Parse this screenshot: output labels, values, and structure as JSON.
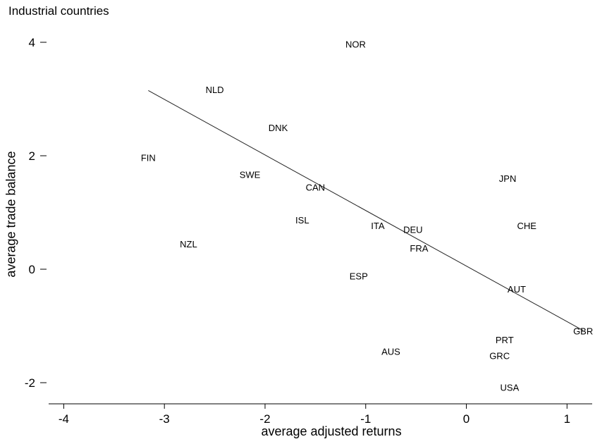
{
  "chart_data": {
    "type": "scatter",
    "title": "Industrial countries",
    "xlabel": "average adjusted returns",
    "ylabel": "average trade balance",
    "xlim": [
      -4.15,
      1.25
    ],
    "ylim": [
      -2.4,
      4.3
    ],
    "x_ticks": [
      "-4",
      "-3",
      "-2",
      "-1",
      "0",
      "1"
    ],
    "y_ticks": [
      "-2",
      "0",
      "2",
      "4"
    ],
    "points": [
      {
        "label": "NOR",
        "x": -1.1,
        "y": 3.97
      },
      {
        "label": "NLD",
        "x": -2.5,
        "y": 3.17
      },
      {
        "label": "DNK",
        "x": -1.87,
        "y": 2.5
      },
      {
        "label": "FIN",
        "x": -3.16,
        "y": 1.97
      },
      {
        "label": "SWE",
        "x": -2.15,
        "y": 1.67
      },
      {
        "label": "CAN",
        "x": -1.5,
        "y": 1.45
      },
      {
        "label": "JPN",
        "x": 0.41,
        "y": 1.6
      },
      {
        "label": "ISL",
        "x": -1.63,
        "y": 0.87
      },
      {
        "label": "ITA",
        "x": -0.88,
        "y": 0.77
      },
      {
        "label": "DEU",
        "x": -0.53,
        "y": 0.7
      },
      {
        "label": "CHE",
        "x": 0.6,
        "y": 0.77
      },
      {
        "label": "FRA",
        "x": -0.47,
        "y": 0.37
      },
      {
        "label": "NZL",
        "x": -2.76,
        "y": 0.45
      },
      {
        "label": "ESP",
        "x": -1.07,
        "y": -0.12
      },
      {
        "label": "AUT",
        "x": 0.5,
        "y": -0.35
      },
      {
        "label": "GBR",
        "x": 1.16,
        "y": -1.09
      },
      {
        "label": "PRT",
        "x": 0.38,
        "y": -1.24
      },
      {
        "label": "AUS",
        "x": -0.75,
        "y": -1.45
      },
      {
        "label": "GRC",
        "x": 0.33,
        "y": -1.52
      },
      {
        "label": "USA",
        "x": 0.43,
        "y": -2.08
      }
    ],
    "fit_line": {
      "x": [
        -3.16,
        1.16
      ],
      "y": [
        3.15,
        -1.08
      ]
    },
    "grid": false,
    "legend": "none"
  }
}
